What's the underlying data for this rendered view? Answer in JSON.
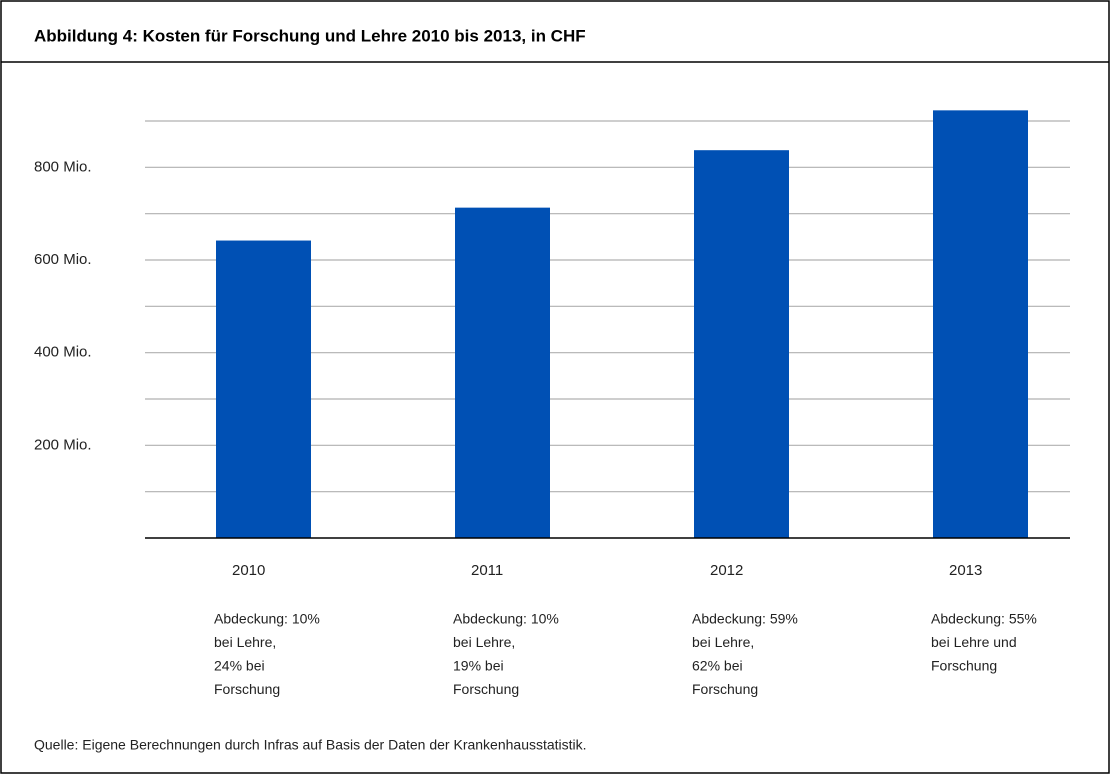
{
  "chart_data": {
    "type": "bar",
    "title": "Abbildung 4: Kosten für Forschung und Lehre 2010 bis 2013, in CHF",
    "categories": [
      "2010",
      "2011",
      "2012",
      "2013"
    ],
    "values": [
      642,
      713,
      837,
      923
    ],
    "color": "#0050b4",
    "ylim": [
      0,
      900
    ],
    "yticks": [
      {
        "value": 200,
        "label": "200 Mio."
      },
      {
        "value": 400,
        "label": "400 Mio."
      },
      {
        "value": 600,
        "label": "600 Mio."
      },
      {
        "value": 800,
        "label": "800 Mio."
      }
    ],
    "minor_yticks": [
      100,
      300,
      500,
      700,
      900
    ],
    "grid": true,
    "annotations": [
      [
        "Abdeckung: 10%",
        "bei Lehre,",
        "24% bei",
        "Forschung"
      ],
      [
        "Abdeckung: 10%",
        "bei Lehre,",
        "19% bei",
        "Forschung"
      ],
      [
        "Abdeckung: 59%",
        "bei Lehre,",
        "62% bei",
        "Forschung"
      ],
      [
        "Abdeckung: 55%",
        "bei Lehre und",
        "Forschung"
      ]
    ],
    "source": "Quelle: Eigene Berechnungen durch Infras auf Basis der Daten der Krankenhausstatistik."
  }
}
